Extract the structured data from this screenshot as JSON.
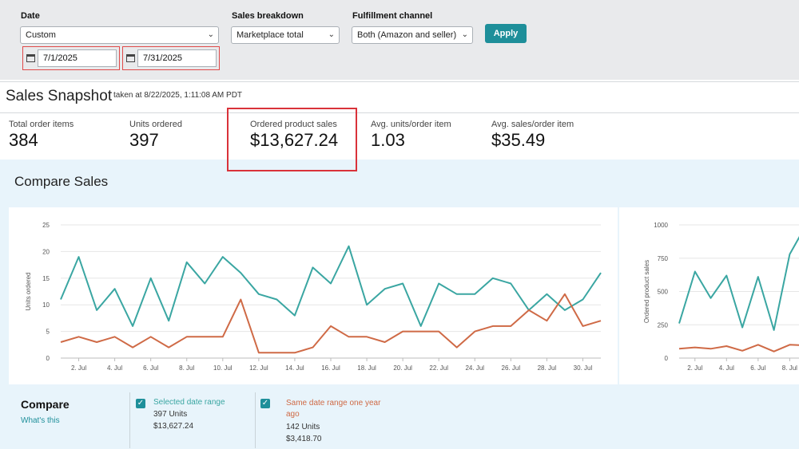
{
  "filters": {
    "date_label": "Date",
    "date_value": "Custom",
    "start_date": "7/1/2025",
    "end_date": "7/31/2025",
    "breakdown_label": "Sales breakdown",
    "breakdown_value": "Marketplace total",
    "channel_label": "Fulfillment channel",
    "channel_value": "Both (Amazon and seller)",
    "apply_label": "Apply"
  },
  "snapshot": {
    "title": "Sales Snapshot",
    "taken": "taken at 8/22/2025, 1:11:08 AM PDT",
    "metrics": [
      {
        "label": "Total order items",
        "value": "384"
      },
      {
        "label": "Units ordered",
        "value": "397"
      },
      {
        "label": "Ordered product sales",
        "value": "$13,627.24"
      },
      {
        "label": "Avg. units/order item",
        "value": "1.03"
      },
      {
        "label": "Avg. sales/order item",
        "value": "$35.49"
      }
    ]
  },
  "compare": {
    "title": "Compare Sales",
    "legend_title": "Compare",
    "whats_this": "What's this",
    "selected": {
      "name": "Selected date range",
      "units": "397 Units",
      "sales": "$13,627.24"
    },
    "last_year": {
      "name": "Same date range one year ago",
      "units": "142 Units",
      "sales": "$3,418.70"
    }
  },
  "colors": {
    "selected": "#3aa6a2",
    "last_year": "#cf6a46",
    "accent": "#1e8f9a"
  },
  "chart_data": [
    {
      "type": "line",
      "ylabel": "Units ordered",
      "ylim": [
        0,
        25
      ],
      "yticks": [
        0,
        5,
        10,
        15,
        20,
        25
      ],
      "x": [
        1,
        2,
        3,
        4,
        5,
        6,
        7,
        8,
        9,
        10,
        11,
        12,
        13,
        14,
        15,
        16,
        17,
        18,
        19,
        20,
        21,
        22,
        23,
        24,
        25,
        26,
        27,
        28,
        29,
        30,
        31
      ],
      "xtick_labels": [
        "2. Jul",
        "4. Jul",
        "6. Jul",
        "8. Jul",
        "10. Jul",
        "12. Jul",
        "14. Jul",
        "16. Jul",
        "18. Jul",
        "20. Jul",
        "22. Jul",
        "24. Jul",
        "26. Jul",
        "28. Jul",
        "30. Jul"
      ],
      "series": [
        {
          "values": [
            11,
            19,
            9,
            13,
            6,
            15,
            7,
            18,
            14,
            19,
            16,
            12,
            11,
            8,
            17,
            14,
            21,
            10,
            13,
            14,
            6,
            14,
            12,
            12,
            15,
            14,
            9,
            12,
            9,
            11,
            16
          ]
        },
        {
          "values": [
            3,
            4,
            3,
            4,
            2,
            4,
            2,
            4,
            4,
            4,
            11,
            1,
            1,
            1,
            2,
            6,
            4,
            4,
            3,
            5,
            5,
            5,
            2,
            5,
            6,
            6,
            9,
            7,
            12,
            6,
            7
          ]
        }
      ]
    },
    {
      "type": "line",
      "ylabel": "Ordered product sales",
      "ylim": [
        0,
        1000
      ],
      "yticks": [
        0,
        250,
        500,
        750,
        1000
      ],
      "x": [
        1,
        2,
        3,
        4,
        5,
        6,
        7,
        8,
        9
      ],
      "xtick_labels": [
        "2. Jul",
        "4. Jul",
        "6. Jul",
        "8. Jul"
      ],
      "series": [
        {
          "values": [
            260,
            650,
            450,
            620,
            230,
            610,
            210,
            780,
            990
          ]
        },
        {
          "values": [
            70,
            80,
            70,
            90,
            55,
            100,
            50,
            100,
            95
          ]
        }
      ]
    }
  ]
}
